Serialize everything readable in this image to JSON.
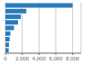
{
  "chart_data": {
    "type": "bar",
    "orientation": "horizontal",
    "categories": [
      null,
      null,
      null,
      null,
      null,
      null,
      null,
      null,
      null
    ],
    "values": [
      8000,
      2500,
      1836,
      1500,
      1023,
      600,
      500,
      423,
      390
    ],
    "color": "#2b7bba",
    "xlim": [
      0,
      9000
    ],
    "xticks": [
      0,
      {
        "value": 2000,
        "label": "2,000"
      },
      {
        "value": 4000,
        "label": "4,000"
      },
      {
        "value": 6000,
        "label": "6,000"
      },
      {
        "value": 8000,
        "label": "8,000"
      }
    ],
    "grid": true,
    "tick_labels": "x"
  }
}
